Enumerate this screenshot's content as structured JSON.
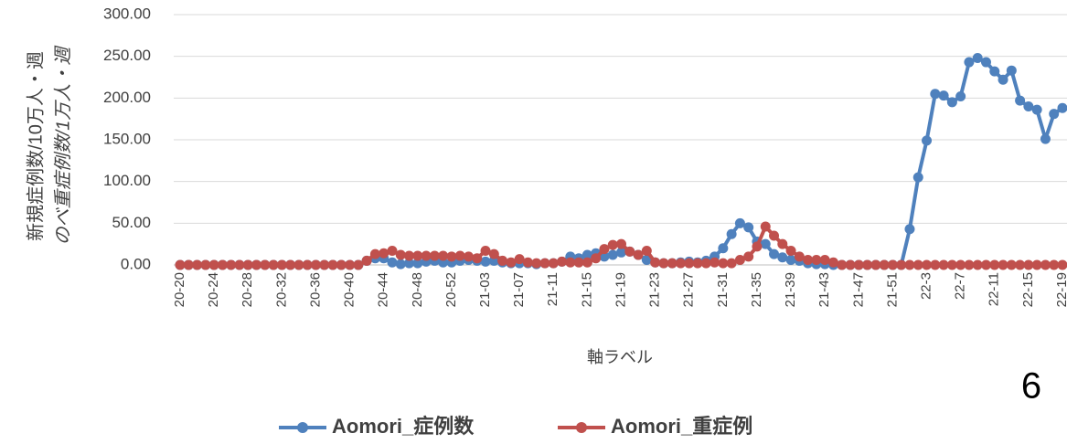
{
  "chart_data": {
    "type": "line",
    "y_axis_label": [
      "新規症例数/10万人・週",
      "のべ重症例数/1万人・週"
    ],
    "x_axis_label": "軸ラベル",
    "page_number": "6",
    "categories": [
      "20-20",
      null,
      null,
      null,
      "20-24",
      null,
      null,
      null,
      "20-28",
      null,
      null,
      null,
      "20-32",
      null,
      null,
      null,
      "20-36",
      null,
      null,
      null,
      "20-40",
      null,
      null,
      null,
      "20-44",
      null,
      null,
      null,
      "20-48",
      null,
      null,
      null,
      "20-52",
      null,
      null,
      null,
      "21-03",
      null,
      null,
      null,
      "21-07",
      null,
      null,
      null,
      "21-11",
      null,
      null,
      null,
      "21-15",
      null,
      null,
      null,
      "21-19",
      null,
      null,
      null,
      "21-23",
      null,
      null,
      null,
      "21-27",
      null,
      null,
      null,
      "21-31",
      null,
      null,
      null,
      "21-35",
      null,
      null,
      null,
      "21-39",
      null,
      null,
      null,
      "21-43",
      null,
      null,
      null,
      "21-47",
      null,
      null,
      null,
      "21-51",
      null,
      null,
      null,
      "22-3",
      null,
      null,
      null,
      "22-7",
      null,
      null,
      null,
      "22-11",
      null,
      null,
      null,
      "22-15",
      null,
      null,
      null,
      "22-19"
    ],
    "series": [
      {
        "name": "Aomori_症例数",
        "color": "#4f81bd",
        "values": [
          0,
          0,
          0,
          0,
          0,
          0,
          0,
          0,
          0,
          0,
          0,
          0,
          0,
          0,
          0,
          0,
          0,
          0,
          0,
          0,
          0,
          0,
          5,
          8,
          8,
          3,
          1,
          2,
          2,
          4,
          5,
          3,
          3,
          5,
          6,
          5,
          4,
          5,
          3,
          2,
          2,
          2,
          1,
          2,
          2,
          4,
          10,
          8,
          12,
          14,
          10,
          12,
          15,
          16,
          12,
          6,
          3,
          2,
          2,
          3,
          4,
          3,
          5,
          10,
          20,
          37,
          50,
          45,
          28,
          25,
          13,
          9,
          6,
          5,
          2,
          1,
          1,
          0,
          0,
          0,
          0,
          0,
          0,
          0,
          0,
          0,
          43,
          105,
          149,
          205,
          203,
          195,
          202,
          243,
          248,
          243,
          232,
          222,
          233,
          197,
          190,
          186,
          151,
          181,
          188
        ]
      },
      {
        "name": "Aomori_重症例",
        "color": "#c0504d",
        "values": [
          0,
          0,
          0,
          0,
          0,
          0,
          0,
          0,
          0,
          0,
          0,
          0,
          0,
          0,
          0,
          0,
          0,
          0,
          0,
          0,
          0,
          0,
          5,
          13,
          14,
          17,
          12,
          11,
          11,
          11,
          11,
          11,
          10,
          11,
          10,
          8,
          17,
          13,
          5,
          3,
          7,
          3,
          2,
          2,
          2,
          4,
          3,
          3,
          3,
          8,
          19,
          24,
          25,
          16,
          12,
          17,
          3,
          2,
          2,
          2,
          2,
          2,
          2,
          3,
          2,
          2,
          6,
          10,
          22,
          46,
          35,
          25,
          17,
          10,
          6,
          6,
          6,
          3,
          0,
          0,
          0,
          0,
          0,
          0,
          0,
          0,
          0,
          0,
          0,
          0,
          0,
          0,
          0,
          0,
          0,
          0,
          0,
          0,
          0,
          0,
          0,
          0,
          0,
          0,
          0
        ]
      }
    ],
    "ylim": [
      0,
      300
    ],
    "yticks": [
      {
        "value": 0,
        "label": "0.00"
      },
      {
        "value": 50,
        "label": "50.00"
      },
      {
        "value": 100,
        "label": "100.00"
      },
      {
        "value": 150,
        "label": "150.00"
      },
      {
        "value": 200,
        "label": "200.00"
      },
      {
        "value": 250,
        "label": "250.00"
      },
      {
        "value": 300,
        "label": "300.00"
      }
    ],
    "grid": true
  }
}
